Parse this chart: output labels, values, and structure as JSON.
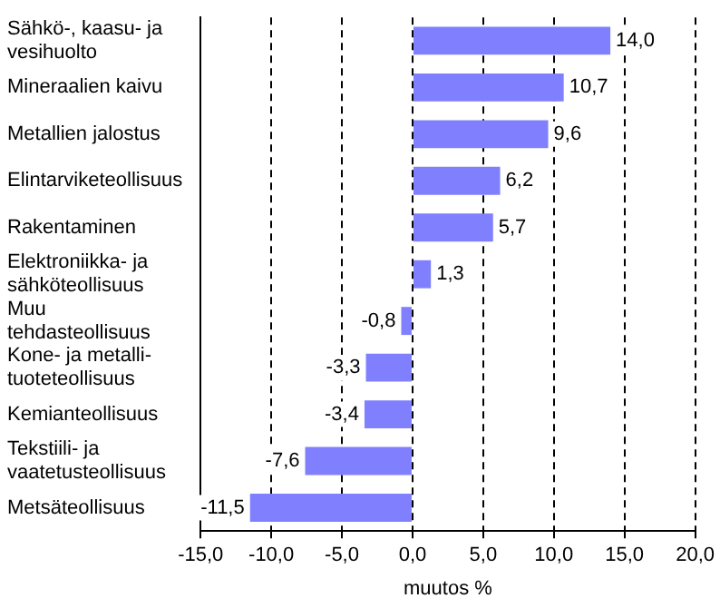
{
  "chart_data": {
    "type": "bar",
    "orientation": "horizontal",
    "xlabel": "muutos %",
    "categories": [
      "Sähkö-, kaasu- ja vesihuolto",
      "Mineraalien kaivu",
      "Metallien jalostus",
      "Elintarviketeollisuus",
      "Rakentaminen",
      "Elektroniikka- ja sähköteollisuus",
      "Muu tehdasteollisuus",
      "Kone- ja metalli- tuoteteollisuus",
      "Kemianteollisuus",
      "Tekstiili- ja vaatetusteollisuus",
      "Metsäteollisuus"
    ],
    "values": [
      14.0,
      10.7,
      9.6,
      6.2,
      5.7,
      1.3,
      -0.8,
      -3.3,
      -3.4,
      -7.6,
      -11.5
    ],
    "value_labels": [
      "14,0",
      "10,7",
      "9,6",
      "6,2",
      "5,7",
      "1,3",
      "-0,8",
      "-3,3",
      "-3,4",
      "-7,6",
      "-11,5"
    ],
    "color": "#8080ff",
    "xlim": [
      -15,
      20
    ],
    "xticks": [
      {
        "value": -15,
        "label": "-15,0"
      },
      {
        "value": -10,
        "label": "-10,0"
      },
      {
        "value": -5,
        "label": "-5,0"
      },
      {
        "value": 0,
        "label": "0,0"
      },
      {
        "value": 5,
        "label": "5,0"
      },
      {
        "value": 10,
        "label": "10,0"
      },
      {
        "value": 15,
        "label": "15,0"
      },
      {
        "value": 20,
        "label": "20,0"
      }
    ],
    "grid": "x",
    "legend": false
  }
}
